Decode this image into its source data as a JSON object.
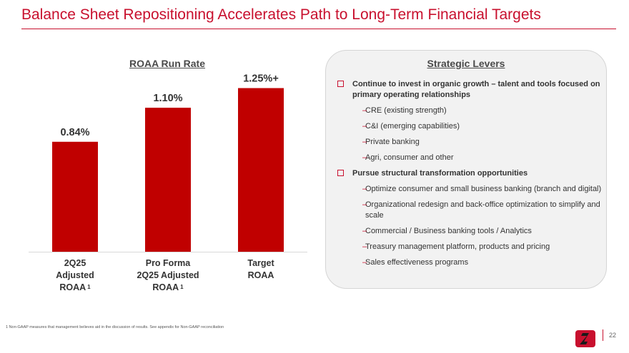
{
  "header": {
    "title": "Balance Sheet Repositioning Accelerates Path to Long-Term Financial Targets"
  },
  "chart_data": {
    "type": "bar",
    "title": "ROAA Run Rate",
    "categories": [
      {
        "lines": [
          "2Q25",
          "Adjusted",
          "ROAA"
        ],
        "footnote_mark": "1"
      },
      {
        "lines": [
          "Pro Forma",
          "2Q25 Adjusted",
          "ROAA"
        ],
        "footnote_mark": "1"
      },
      {
        "lines": [
          "Target",
          "ROAA"
        ],
        "footnote_mark": ""
      }
    ],
    "values": [
      0.84,
      1.1,
      1.25
    ],
    "value_labels": [
      "0.84%",
      "1.10%",
      "1.25%+"
    ],
    "ylim": [
      0,
      1.4
    ],
    "xlabel": "",
    "ylabel": "",
    "grid": false,
    "bar_color": "#c00000"
  },
  "levers": {
    "title": "Strategic Levers",
    "groups": [
      {
        "heading": "Continue to invest in organic growth – talent and tools focused on primary operating relationships",
        "items": [
          "CRE (existing strength)",
          "C&I (emerging capabilities)",
          "Private banking",
          "Agri, consumer and other"
        ]
      },
      {
        "heading": "Pursue structural transformation opportunities",
        "items": [
          "Optimize consumer and small business banking (branch and digital)",
          "Organizational redesign and back-office optimization to simplify and scale",
          "Commercial / Business banking tools / Analytics",
          "Treasury management platform, products and pricing",
          "Sales effectiveness programs"
        ]
      }
    ]
  },
  "footer": {
    "footnote": "1  Non-GAAP measures that management believes aid in the discussion of results. See appendix for Non-GAAP reconciliation",
    "page_number": "22"
  },
  "colors": {
    "accent": "#c8102e",
    "bar": "#c00000",
    "panel": "#f2f2f2"
  }
}
